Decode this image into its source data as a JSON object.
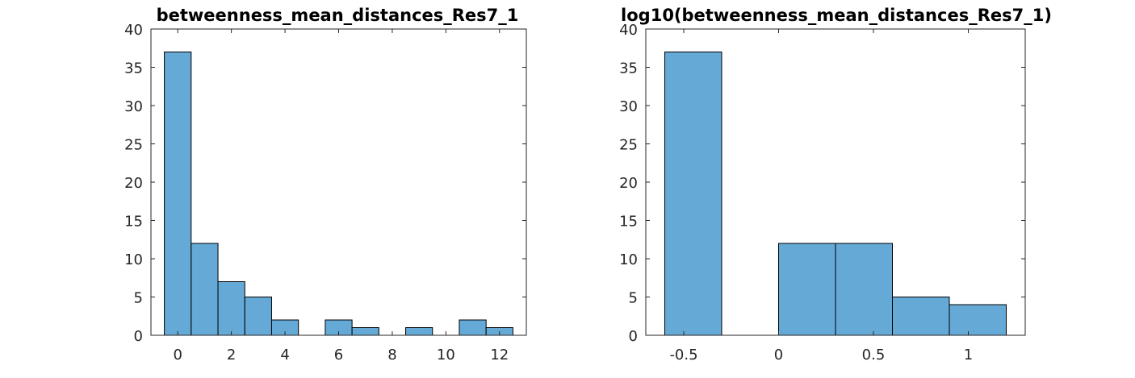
{
  "colors": {
    "bar_fill": "#65a9d7",
    "bar_edge": "#000000",
    "axis": "#262626"
  },
  "chart_data": [
    {
      "type": "bar",
      "title": "betweenness_mean_distances_Res7_1",
      "xlabel": "",
      "ylabel": "",
      "xlim": [
        -1,
        13
      ],
      "ylim": [
        0,
        40
      ],
      "xticks": [
        0,
        2,
        4,
        6,
        8,
        10,
        12
      ],
      "yticks": [
        0,
        5,
        10,
        15,
        20,
        25,
        30,
        35,
        40
      ],
      "bin_edges": [
        -0.5,
        0.5,
        1.5,
        2.5,
        3.5,
        4.5,
        5.5,
        6.5,
        7.5,
        8.5,
        9.5,
        10.5,
        11.5,
        12.5
      ],
      "values": [
        37,
        12,
        7,
        5,
        2,
        0,
        2,
        1,
        0,
        1,
        0,
        2,
        1
      ],
      "grid": false
    },
    {
      "type": "bar",
      "title": "log10(betweenness_mean_distances_Res7_1)",
      "xlabel": "",
      "ylabel": "",
      "xlim": [
        -0.7,
        1.3
      ],
      "ylim": [
        0,
        40
      ],
      "xticks": [
        -0.5,
        0,
        0.5,
        1
      ],
      "yticks": [
        0,
        5,
        10,
        15,
        20,
        25,
        30,
        35,
        40
      ],
      "bin_edges": [
        -0.6,
        -0.3,
        0,
        0.3,
        0.6,
        0.9,
        1.2
      ],
      "values": [
        37,
        0,
        12,
        12,
        5,
        4
      ],
      "grid": false
    }
  ]
}
